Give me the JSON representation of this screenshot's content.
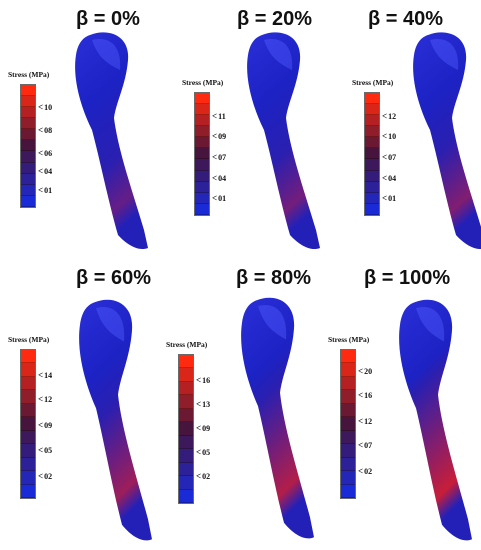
{
  "legend_title": "Stress (MPa)",
  "colors": {
    "low": "#1a2ad6",
    "high": "#ff2a10",
    "bone_base": "#1b24c8"
  },
  "panels": [
    {
      "beta": "β = 0%",
      "ticks": [
        "10",
        "08",
        "06",
        "04",
        "01"
      ],
      "stress_level": 0.15
    },
    {
      "beta": "β = 20%",
      "ticks": [
        "11",
        "09",
        "07",
        "04",
        "01"
      ],
      "stress_level": 0.25
    },
    {
      "beta": "β = 40%",
      "ticks": [
        "12",
        "10",
        "07",
        "04",
        "01"
      ],
      "stress_level": 0.35
    },
    {
      "beta": "β = 60%",
      "ticks": [
        "14",
        "12",
        "09",
        "05",
        "02"
      ],
      "stress_level": 0.55
    },
    {
      "beta": "β = 80%",
      "ticks": [
        "16",
        "13",
        "09",
        "05",
        "02"
      ],
      "stress_level": 0.7
    },
    {
      "beta": "β = 100%",
      "ticks": [
        "20",
        "16",
        "12",
        "07",
        "02"
      ],
      "stress_level": 0.85
    }
  ]
}
